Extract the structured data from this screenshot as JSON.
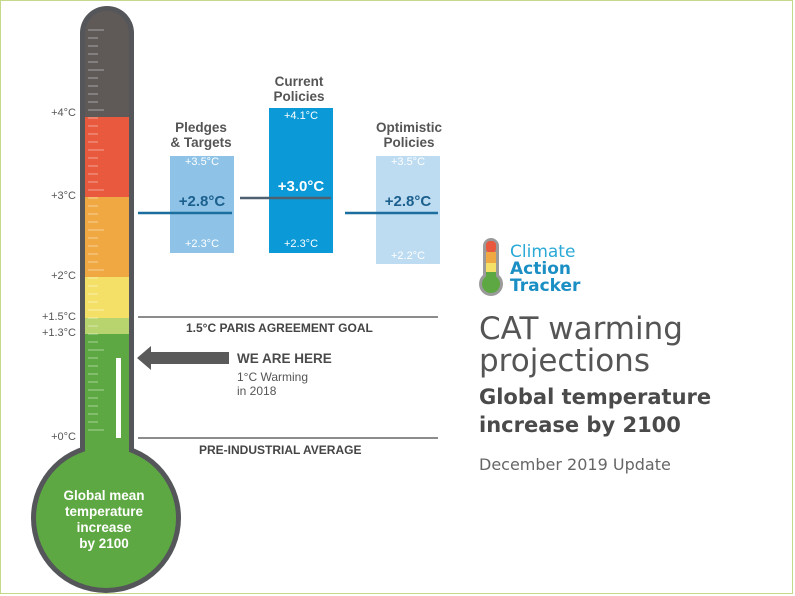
{
  "thermometer": {
    "tick_labels": [
      "+4°C",
      "+3°C",
      "+2°C",
      "+1.5°C",
      "+1.3°C",
      "+0°C"
    ],
    "bulb_text": [
      "Global mean",
      "temperature",
      "increase",
      "by 2100"
    ],
    "colors": {
      "outline": "#54565a",
      "above_4": "#5f5a58",
      "range_3_4": "#e8593e",
      "range_2_3": "#f0a843",
      "range_15_2": "#f4e067",
      "range_13_15": "#b8d46e",
      "below_13": "#5ea843",
      "bulb": "#5ea843"
    }
  },
  "columns": [
    {
      "heading": [
        "Pledges",
        "& Targets"
      ],
      "high": "+3.5°C",
      "median": "+2.8°C",
      "low": "+2.3°C",
      "color": "#8ec3e7"
    },
    {
      "heading": [
        "Current",
        "Policies"
      ],
      "high": "+4.1°C",
      "median": "+3.0°C",
      "low": "+2.3°C",
      "color": "#0b9ad7"
    },
    {
      "heading": [
        "Optimistic",
        "Policies"
      ],
      "high": "+3.5°C",
      "median": "+2.8°C",
      "low": "+2.2°C",
      "color": "#bedcf1"
    }
  ],
  "reference_lines": {
    "paris_goal": "1.5°C PARIS AGREEMENT GOAL",
    "pre_industrial": "PRE-INDUSTRIAL AVERAGE"
  },
  "we_are_here": {
    "title": "WE ARE HERE",
    "line1": "1°C Warming",
    "line2": "in 2018"
  },
  "logo": {
    "word1": "Climate",
    "word2": "Action",
    "word3": "Tracker",
    "color_light": "#2aa9d6",
    "color_dark": "#1b8fc4"
  },
  "title": {
    "line1": "CAT warming",
    "line2": "projections",
    "sub1": "Global temperature",
    "sub2": "increase by 2100",
    "update": "December 2019 Update"
  }
}
